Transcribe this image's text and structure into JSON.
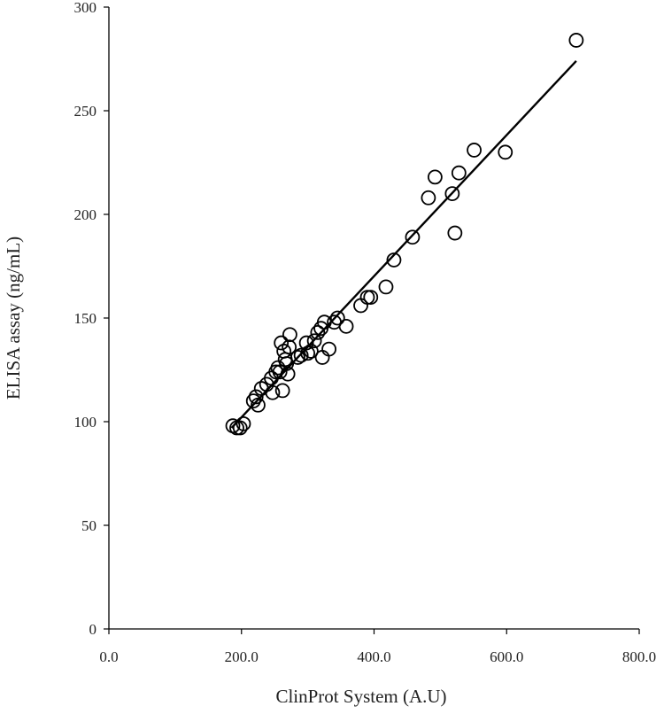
{
  "chart_data": {
    "type": "scatter",
    "title": "",
    "xlabel": "ClinProt System (A.U)",
    "ylabel": "ELISA assay (ng/mL)",
    "xlim": [
      0,
      800
    ],
    "ylim": [
      0,
      300
    ],
    "x_ticks": [
      0,
      200,
      400,
      600,
      800
    ],
    "x_tick_labels": [
      "0.0",
      "200.0",
      "400.0",
      "600.0",
      "800.0"
    ],
    "y_ticks": [
      0,
      50,
      100,
      150,
      200,
      250,
      300
    ],
    "y_tick_labels": [
      "0",
      "50",
      "100",
      "150",
      "200",
      "250",
      "300"
    ],
    "grid": false,
    "legend": "none",
    "marker": "open-circle",
    "trendline": {
      "x": [
        185,
        705
      ],
      "y": [
        97,
        274
      ]
    },
    "points": [
      {
        "x": 187,
        "y": 98
      },
      {
        "x": 193,
        "y": 97
      },
      {
        "x": 198,
        "y": 97
      },
      {
        "x": 203,
        "y": 99
      },
      {
        "x": 218,
        "y": 110
      },
      {
        "x": 222,
        "y": 112
      },
      {
        "x": 225,
        "y": 108
      },
      {
        "x": 230,
        "y": 116
      },
      {
        "x": 238,
        "y": 118
      },
      {
        "x": 245,
        "y": 121
      },
      {
        "x": 247,
        "y": 114
      },
      {
        "x": 252,
        "y": 124
      },
      {
        "x": 255,
        "y": 126
      },
      {
        "x": 258,
        "y": 124
      },
      {
        "x": 260,
        "y": 138
      },
      {
        "x": 262,
        "y": 115
      },
      {
        "x": 264,
        "y": 134
      },
      {
        "x": 266,
        "y": 130
      },
      {
        "x": 268,
        "y": 128
      },
      {
        "x": 270,
        "y": 123
      },
      {
        "x": 272,
        "y": 136
      },
      {
        "x": 273,
        "y": 142
      },
      {
        "x": 285,
        "y": 131
      },
      {
        "x": 290,
        "y": 132
      },
      {
        "x": 298,
        "y": 138
      },
      {
        "x": 300,
        "y": 133
      },
      {
        "x": 305,
        "y": 134
      },
      {
        "x": 310,
        "y": 139
      },
      {
        "x": 315,
        "y": 143
      },
      {
        "x": 320,
        "y": 145
      },
      {
        "x": 322,
        "y": 131
      },
      {
        "x": 325,
        "y": 148
      },
      {
        "x": 332,
        "y": 135
      },
      {
        "x": 340,
        "y": 148
      },
      {
        "x": 345,
        "y": 150
      },
      {
        "x": 358,
        "y": 146
      },
      {
        "x": 380,
        "y": 156
      },
      {
        "x": 390,
        "y": 160
      },
      {
        "x": 395,
        "y": 160
      },
      {
        "x": 418,
        "y": 165
      },
      {
        "x": 430,
        "y": 178
      },
      {
        "x": 458,
        "y": 189
      },
      {
        "x": 482,
        "y": 208
      },
      {
        "x": 492,
        "y": 218
      },
      {
        "x": 518,
        "y": 210
      },
      {
        "x": 522,
        "y": 191
      },
      {
        "x": 528,
        "y": 220
      },
      {
        "x": 551,
        "y": 231
      },
      {
        "x": 598,
        "y": 230
      },
      {
        "x": 705,
        "y": 284
      }
    ]
  }
}
